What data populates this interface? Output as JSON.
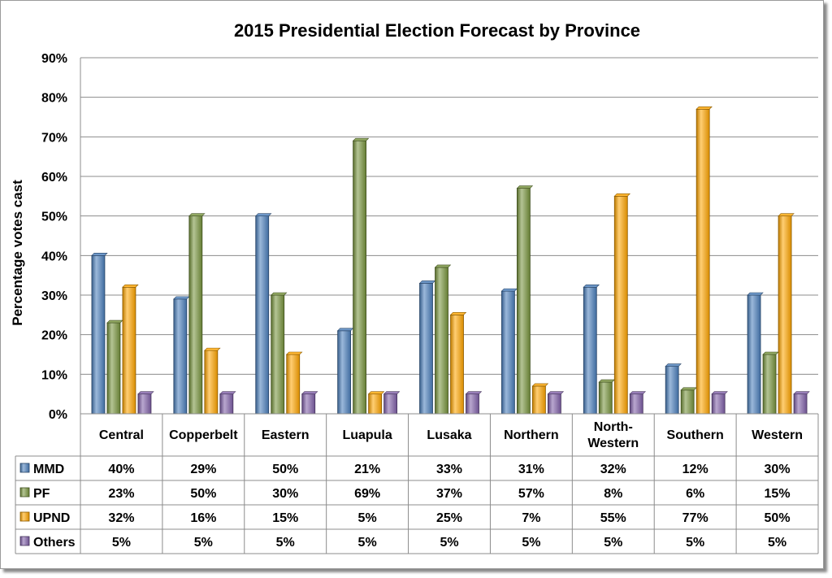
{
  "chart_data": {
    "type": "bar",
    "title": "2015 Presidential Election Forecast by Province",
    "ylabel": "Percentage votes cast",
    "xlabel": "",
    "ylim": [
      0,
      90
    ],
    "yticks": [
      "0%",
      "10%",
      "20%",
      "30%",
      "40%",
      "50%",
      "60%",
      "70%",
      "80%",
      "90%"
    ],
    "categories": [
      "Central",
      "Copperbelt",
      "Eastern",
      "Luapula",
      "Lusaka",
      "Northern",
      "North-\nWestern",
      "Southern",
      "Western"
    ],
    "series": [
      {
        "name": "MMD",
        "color": "#4a7ebb",
        "values": [
          40,
          29,
          50,
          21,
          33,
          31,
          32,
          12,
          30
        ]
      },
      {
        "name": "PF",
        "color": "#77933c",
        "values": [
          23,
          50,
          30,
          69,
          37,
          57,
          8,
          6,
          15
        ]
      },
      {
        "name": "UPND",
        "color": "#ffa500",
        "values": [
          32,
          16,
          15,
          5,
          25,
          7,
          55,
          77,
          50
        ]
      },
      {
        "name": "Others",
        "color": "#7f5fa8",
        "values": [
          5,
          5,
          5,
          5,
          5,
          5,
          5,
          5,
          5
        ]
      }
    ],
    "table_cells": [
      [
        "40%",
        "29%",
        "50%",
        "21%",
        "33%",
        "31%",
        "32%",
        "12%",
        "30%"
      ],
      [
        "23%",
        "50%",
        "30%",
        "69%",
        "37%",
        "57%",
        "8%",
        "6%",
        "15%"
      ],
      [
        "32%",
        "16%",
        "15%",
        "5%",
        "25%",
        "7%",
        "55%",
        "77%",
        "50%"
      ],
      [
        "5%",
        "5%",
        "5%",
        "5%",
        "5%",
        "5%",
        "5%",
        "5%",
        "5%"
      ]
    ],
    "grid": true,
    "legend": "data-table"
  }
}
